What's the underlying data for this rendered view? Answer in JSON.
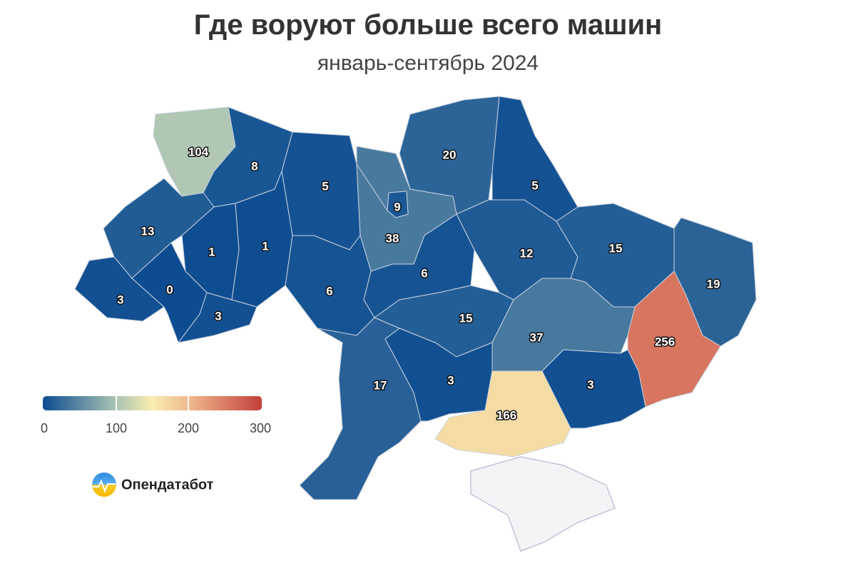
{
  "chart_data": {
    "type": "choropleth",
    "title": "Где воруют больше всего машин",
    "subtitle": "январь-сентябрь 2024",
    "values": [
      104,
      8,
      5,
      9,
      38,
      20,
      5,
      13,
      1,
      1,
      3,
      0,
      3,
      6,
      6,
      12,
      15,
      19,
      15,
      37,
      256,
      17,
      3,
      166,
      3
    ],
    "colorscale": {
      "range": [
        0,
        300
      ],
      "ticks": [
        0,
        100,
        200,
        300
      ],
      "stops": [
        [
          0,
          "#0d4c91"
        ],
        [
          100,
          "#a9c4b3"
        ],
        [
          150,
          "#f8ecb0"
        ],
        [
          200,
          "#f0b98e"
        ],
        [
          300,
          "#c43f3a"
        ]
      ]
    },
    "logo": "Опендатабот"
  }
}
